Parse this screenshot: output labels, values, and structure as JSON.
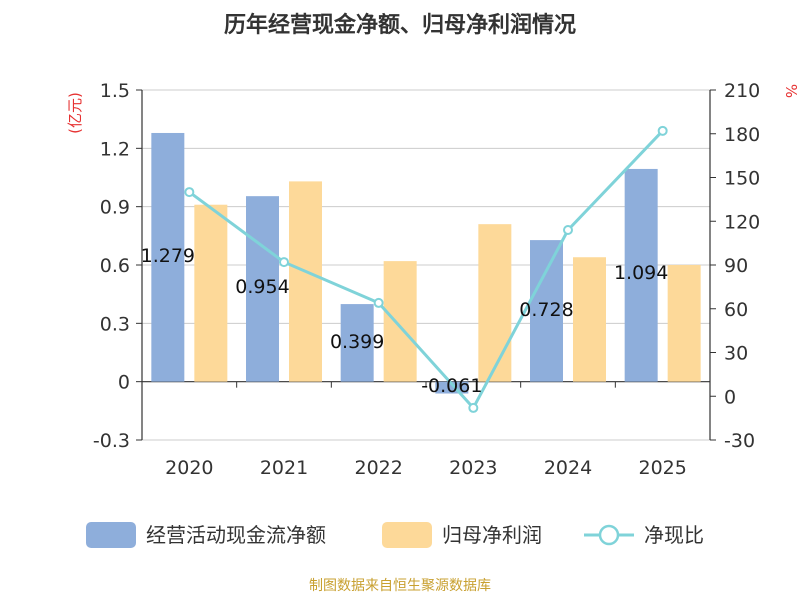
{
  "chart_data": {
    "type": "bar",
    "title": "历年经营现金净额、归母净利润情况",
    "categories": [
      "2020",
      "2021",
      "2022",
      "2023",
      "2024",
      "2025"
    ],
    "ylabel_left": "(亿元)",
    "ylabel_right": "%",
    "ylim_left": [
      -0.3,
      1.5
    ],
    "yticks_left": [
      -0.3,
      0,
      0.3,
      0.6,
      0.9,
      1.2,
      1.5
    ],
    "ylim_right": [
      -30,
      210
    ],
    "yticks_right": [
      -30,
      0,
      30,
      60,
      90,
      120,
      150,
      180,
      210
    ],
    "grid": true,
    "legend_position": "bottom",
    "series": [
      {
        "name": "经营活动现金流净额",
        "kind": "bar",
        "axis": "left",
        "color": "#8eaedb",
        "values": [
          1.279,
          0.954,
          0.399,
          -0.061,
          0.728,
          1.094
        ],
        "labels": [
          "1.279",
          "0.954",
          "0.399",
          "-0.061",
          "0.728",
          "1.094"
        ]
      },
      {
        "name": "归母净利润",
        "kind": "bar",
        "axis": "left",
        "color": "#fdd999",
        "values": [
          0.91,
          1.03,
          0.62,
          0.81,
          0.64,
          0.6
        ]
      },
      {
        "name": "净现比",
        "kind": "line",
        "axis": "right",
        "color": "#7fd3d9",
        "values": [
          140.0,
          92.0,
          64.0,
          -8.0,
          114.0,
          182.0
        ]
      }
    ]
  },
  "source_text": "制图数据来自恒生聚源数据库",
  "colors": {
    "title": "#333333",
    "axis_text": "#333333",
    "right_label": "#e63232",
    "grid": "#cccccc",
    "source": "#c8a030"
  }
}
